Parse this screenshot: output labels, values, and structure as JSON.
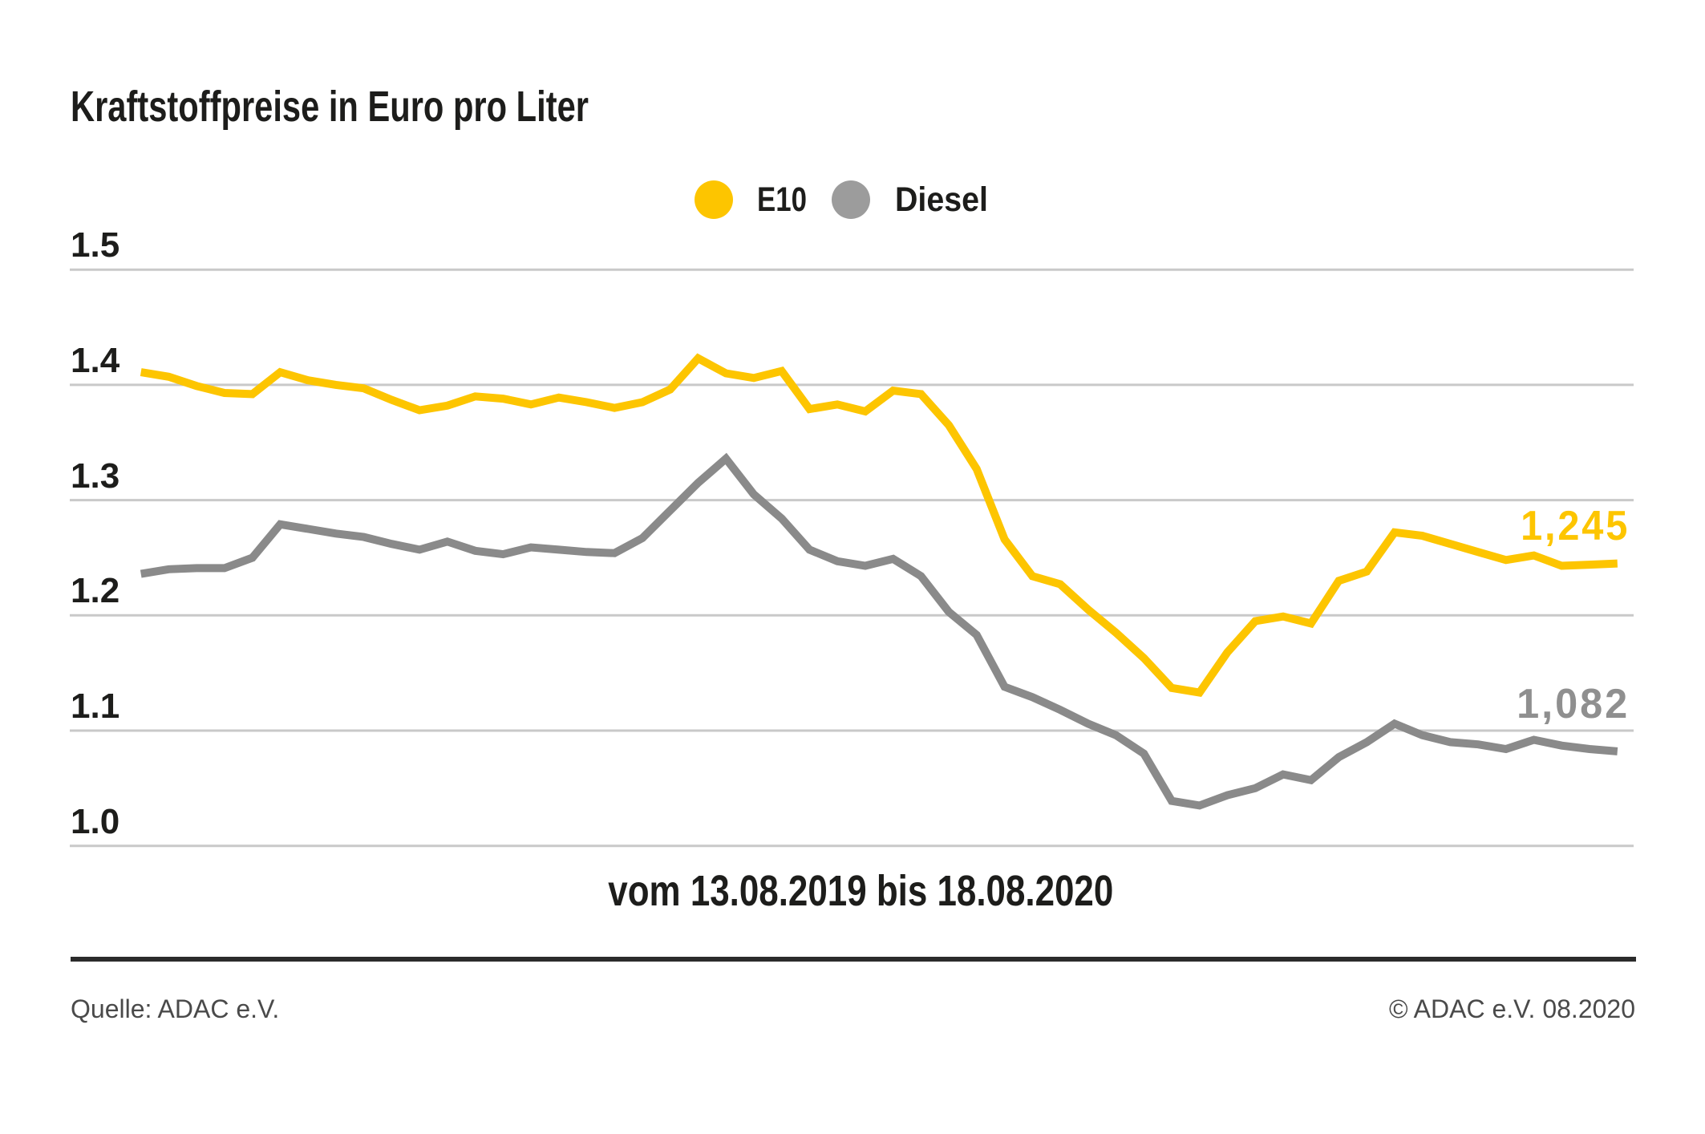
{
  "title": "Kraftstoffpreise in Euro pro Liter",
  "legend": {
    "items": [
      {
        "label": "E10",
        "color": "#fdc500"
      },
      {
        "label": "Diesel",
        "color": "#9c9c9c"
      }
    ]
  },
  "chart_data": {
    "type": "line",
    "title": "Kraftstoffpreise in Euro pro Liter",
    "caption": "vom 13.08.2019 bis 18.08.2020",
    "xlabel": "vom 13.08.2019 bis 18.08.2020",
    "ylabel": "Euro pro Liter",
    "ylim": [
      1.0,
      1.5
    ],
    "grid": true,
    "legend_position": "top-center",
    "y_ticks": [
      {
        "label": "1.5",
        "value": 1.5
      },
      {
        "label": "1.4",
        "value": 1.4
      },
      {
        "label": "1.3",
        "value": 1.3
      },
      {
        "label": "1.2",
        "value": 1.2
      },
      {
        "label": "1.1",
        "value": 1.1
      },
      {
        "label": "1.0",
        "value": 1.0
      }
    ],
    "series": [
      {
        "name": "E10",
        "color": "#fdc500",
        "end_label": "1,245",
        "final_value": 1.245,
        "values": [
          1.411,
          1.407,
          1.399,
          1.393,
          1.392,
          1.411,
          1.404,
          1.4,
          1.397,
          1.387,
          1.378,
          1.382,
          1.39,
          1.388,
          1.383,
          1.389,
          1.385,
          1.38,
          1.385,
          1.396,
          1.423,
          1.41,
          1.406,
          1.412,
          1.379,
          1.383,
          1.377,
          1.395,
          1.392,
          1.365,
          1.327,
          1.266,
          1.234,
          1.227,
          1.205,
          1.185,
          1.163,
          1.137,
          1.133,
          1.168,
          1.195,
          1.199,
          1.193,
          1.23,
          1.238,
          1.272,
          1.269,
          1.262,
          1.255,
          1.248,
          1.252,
          1.243,
          1.244,
          1.245
        ]
      },
      {
        "name": "Diesel",
        "color": "#8a8a8a",
        "end_label": "1,082",
        "final_value": 1.082,
        "values": [
          1.236,
          1.24,
          1.241,
          1.241,
          1.25,
          1.279,
          1.275,
          1.271,
          1.268,
          1.262,
          1.257,
          1.264,
          1.256,
          1.253,
          1.259,
          1.257,
          1.255,
          1.254,
          1.267,
          1.291,
          1.315,
          1.336,
          1.305,
          1.284,
          1.257,
          1.247,
          1.243,
          1.249,
          1.234,
          1.203,
          1.183,
          1.138,
          1.129,
          1.118,
          1.106,
          1.096,
          1.08,
          1.039,
          1.035,
          1.044,
          1.05,
          1.062,
          1.057,
          1.077,
          1.09,
          1.106,
          1.096,
          1.09,
          1.088,
          1.084,
          1.092,
          1.087,
          1.084,
          1.082
        ]
      }
    ]
  },
  "footer": {
    "source": "Quelle: ADAC e.V.",
    "copyright": "© ADAC e.V. 08.2020"
  }
}
